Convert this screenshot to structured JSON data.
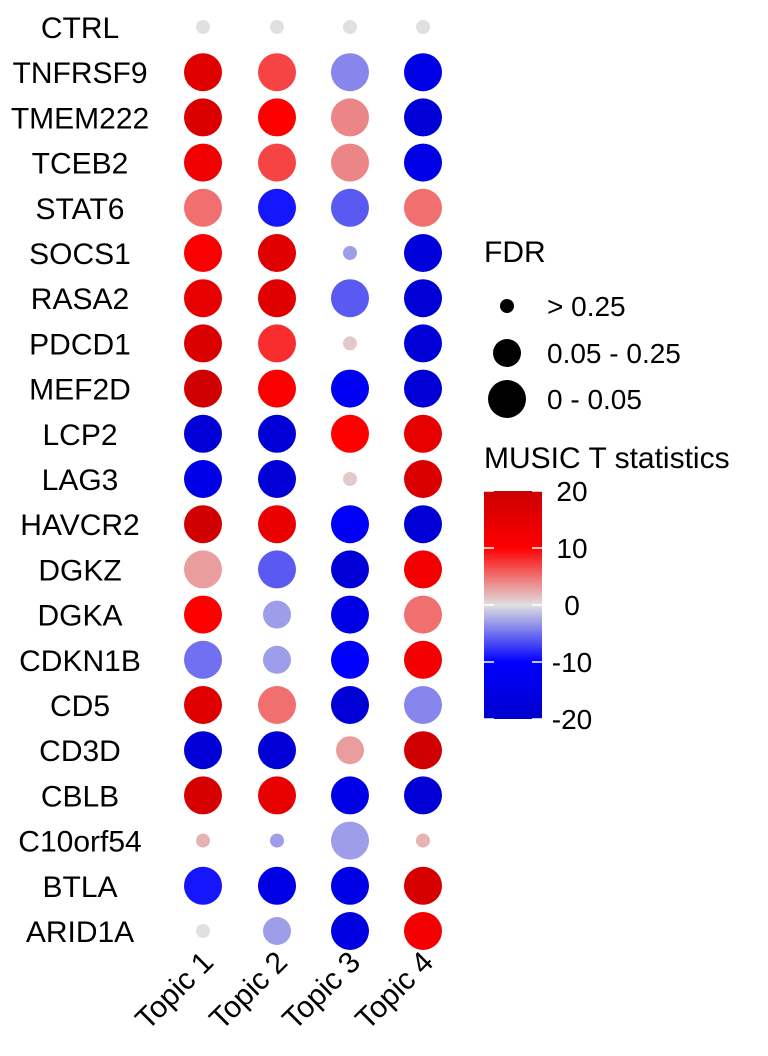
{
  "chart_data": {
    "type": "dotplot",
    "genes": [
      "CTRL",
      "TNFRSF9",
      "TMEM222",
      "TCEB2",
      "STAT6",
      "SOCS1",
      "RASA2",
      "PDCD1",
      "MEF2D",
      "LCP2",
      "LAG3",
      "HAVCR2",
      "DGKZ",
      "DGKA",
      "CDKN1B",
      "CD5",
      "CD3D",
      "CBLB",
      "C10orf54",
      "BTLA",
      "ARID1A"
    ],
    "topics": [
      "Topic 1",
      "Topic 2",
      "Topic 3",
      "Topic 4"
    ],
    "t_statistics": [
      [
        0,
        0,
        0,
        0
      ],
      [
        16,
        7,
        -4,
        -15
      ],
      [
        17,
        10,
        4,
        -18
      ],
      [
        13,
        7,
        4,
        -15
      ],
      [
        5,
        -9,
        -6,
        5
      ],
      [
        11,
        16,
        -3,
        -17
      ],
      [
        15,
        16,
        -6,
        -18
      ],
      [
        17,
        8,
        1,
        -18
      ],
      [
        19,
        11,
        -12,
        -18
      ],
      [
        -18,
        -18,
        10,
        15
      ],
      [
        -15,
        -18,
        1,
        17
      ],
      [
        19,
        14,
        -11,
        -18
      ],
      [
        3,
        -6,
        -18,
        12
      ],
      [
        10,
        -3,
        -15,
        5
      ],
      [
        -5,
        -3,
        -10,
        12
      ],
      [
        16,
        5,
        -18,
        -4
      ],
      [
        -18,
        -18,
        3,
        19
      ],
      [
        18,
        15,
        -15,
        -18
      ],
      [
        2,
        -3,
        -3,
        2
      ],
      [
        -9,
        -15,
        -15,
        18
      ],
      [
        0,
        -3,
        -16,
        12
      ]
    ],
    "fdr_category": [
      [
        0,
        0,
        0,
        0
      ],
      [
        2,
        2,
        2,
        2
      ],
      [
        2,
        2,
        2,
        2
      ],
      [
        2,
        2,
        2,
        2
      ],
      [
        2,
        2,
        2,
        2
      ],
      [
        2,
        2,
        0,
        2
      ],
      [
        2,
        2,
        2,
        2
      ],
      [
        2,
        2,
        0,
        2
      ],
      [
        2,
        2,
        2,
        2
      ],
      [
        2,
        2,
        2,
        2
      ],
      [
        2,
        2,
        0,
        2
      ],
      [
        2,
        2,
        2,
        2
      ],
      [
        2,
        2,
        2,
        2
      ],
      [
        2,
        1,
        2,
        2
      ],
      [
        2,
        1,
        2,
        2
      ],
      [
        2,
        2,
        2,
        2
      ],
      [
        2,
        2,
        1,
        2
      ],
      [
        2,
        2,
        2,
        2
      ],
      [
        0,
        0,
        2,
        0
      ],
      [
        2,
        2,
        2,
        2
      ],
      [
        0,
        1,
        2,
        2
      ]
    ],
    "size_legend": {
      "title": "FDR",
      "labels": [
        "> 0.25",
        "0.05 - 0.25",
        "0 - 0.05"
      ]
    },
    "color_legend": {
      "title": "MUSIC T statistics",
      "ticks": [
        20,
        10,
        0,
        -10,
        -20
      ],
      "range": [
        -20,
        20
      ],
      "colors": {
        "high": "#CC0000",
        "mid": "#E0E0E0",
        "low": "#0000CC"
      }
    }
  }
}
